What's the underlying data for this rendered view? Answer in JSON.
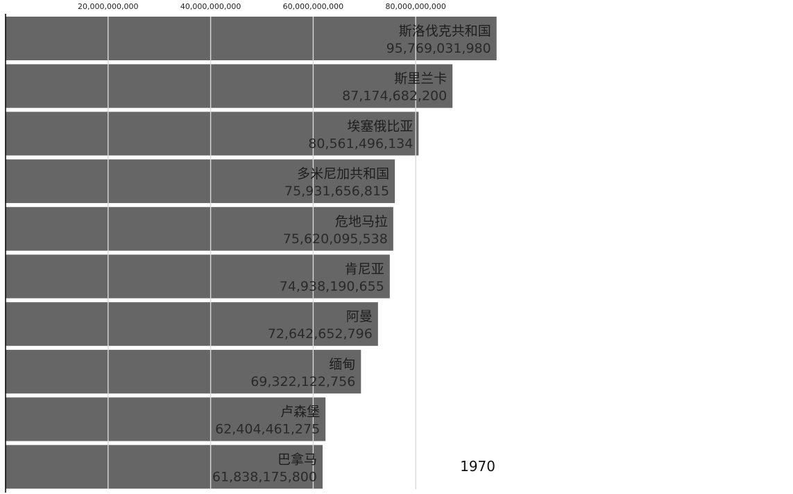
{
  "chart_data": {
    "type": "bar",
    "orientation": "horizontal",
    "period": "1970",
    "categories": [
      "斯洛伐克共和国",
      "斯里兰卡",
      "埃塞俄比亚",
      "多米尼加共和国",
      "危地马拉",
      "肯尼亚",
      "阿曼",
      "缅甸",
      "卢森堡",
      "巴拿马"
    ],
    "values": [
      95769031980,
      87174682200,
      80561496134,
      75931656815,
      75620095538,
      74938190655,
      72642652796,
      69322122756,
      62404461275,
      61838175800
    ],
    "value_labels": [
      "95,769,031,980",
      "87,174,682,200",
      "80,561,496,134",
      "75,931,656,815",
      "75,620,095,538",
      "74,938,190,655",
      "72,642,652,796",
      "69,322,122,756",
      "62,404,461,275",
      "61,838,175,800"
    ],
    "x_ticks": [
      20000000000,
      40000000000,
      60000000000,
      80000000000
    ],
    "x_tick_labels": [
      "20,000,000,000",
      "40,000,000,000",
      "60,000,000,000",
      "80,000,000,000"
    ],
    "xlim": [
      0,
      100000000000
    ],
    "axis_position": "top",
    "grid": true,
    "colors": {
      "bar": "#666666",
      "grid": "#d9d9d9",
      "axis": "#000000",
      "text": "#222222"
    },
    "title": "",
    "xlabel": "",
    "ylabel": ""
  }
}
